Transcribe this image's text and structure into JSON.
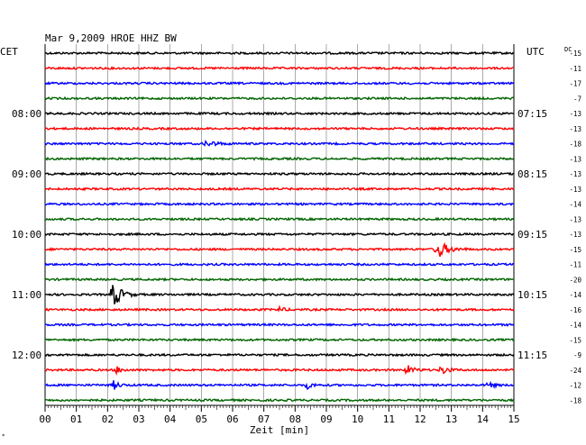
{
  "header": {
    "title": "Mar 9,2009   HROE HHZ BW",
    "left_zone": "CET",
    "right_zone": "UTC",
    "dc_label": "DC"
  },
  "colors": {
    "black": "#000000",
    "red": "#ff0000",
    "blue": "#0000ff",
    "green": "#006400",
    "grid": "#000000"
  },
  "chart_data": {
    "type": "line",
    "title": "Mar 9,2009   HROE HHZ BW",
    "xlabel": "Zeit [min]",
    "ylabel": "",
    "xlim": [
      0,
      15
    ],
    "x_ticks": [
      "00",
      "01",
      "02",
      "03",
      "04",
      "05",
      "06",
      "07",
      "08",
      "09",
      "10",
      "11",
      "12",
      "13",
      "14",
      "15"
    ],
    "n_traces": 24,
    "trace_colors": [
      "black",
      "red",
      "blue",
      "green"
    ],
    "left_time_labels": [
      {
        "trace": 4,
        "text": "08:00"
      },
      {
        "trace": 8,
        "text": "09:00"
      },
      {
        "trace": 12,
        "text": "10:00"
      },
      {
        "trace": 16,
        "text": "11:00"
      },
      {
        "trace": 20,
        "text": "12:00"
      }
    ],
    "right_time_labels": [
      {
        "trace": 4,
        "text": "07:15"
      },
      {
        "trace": 8,
        "text": "08:15"
      },
      {
        "trace": 12,
        "text": "09:15"
      },
      {
        "trace": 16,
        "text": "10:15"
      },
      {
        "trace": 20,
        "text": "11:15"
      }
    ],
    "dc_offsets": [
      "-15",
      "-11",
      "-17",
      "-7",
      "-13",
      "-13",
      "-18",
      "-13",
      "-13",
      "-13",
      "-14",
      "-13",
      "-13",
      "-15",
      "-11",
      "-20",
      "-14",
      "-16",
      "-14",
      "-15",
      "-9",
      "-24",
      "-12",
      "-18"
    ],
    "events": [
      {
        "trace": 13,
        "minute": 12.6,
        "amplitude": 9,
        "width_min": 0.6
      },
      {
        "trace": 16,
        "minute": 2.2,
        "amplitude": 14,
        "width_min": 0.5
      },
      {
        "trace": 17,
        "minute": 7.5,
        "amplitude": 3,
        "width_min": 0.3
      },
      {
        "trace": 21,
        "minute": 2.3,
        "amplitude": 4,
        "width_min": 0.3
      },
      {
        "trace": 21,
        "minute": 11.6,
        "amplitude": 5,
        "width_min": 0.4
      },
      {
        "trace": 21,
        "minute": 12.7,
        "amplitude": 5,
        "width_min": 0.4
      },
      {
        "trace": 22,
        "minute": 2.2,
        "amplitude": 5,
        "width_min": 0.3
      },
      {
        "trace": 22,
        "minute": 8.4,
        "amplitude": 4,
        "width_min": 0.3
      },
      {
        "trace": 22,
        "minute": 14.2,
        "amplitude": 4,
        "width_min": 0.3
      },
      {
        "trace": 6,
        "minute": 5.2,
        "amplitude": 3,
        "width_min": 0.6
      }
    ]
  }
}
